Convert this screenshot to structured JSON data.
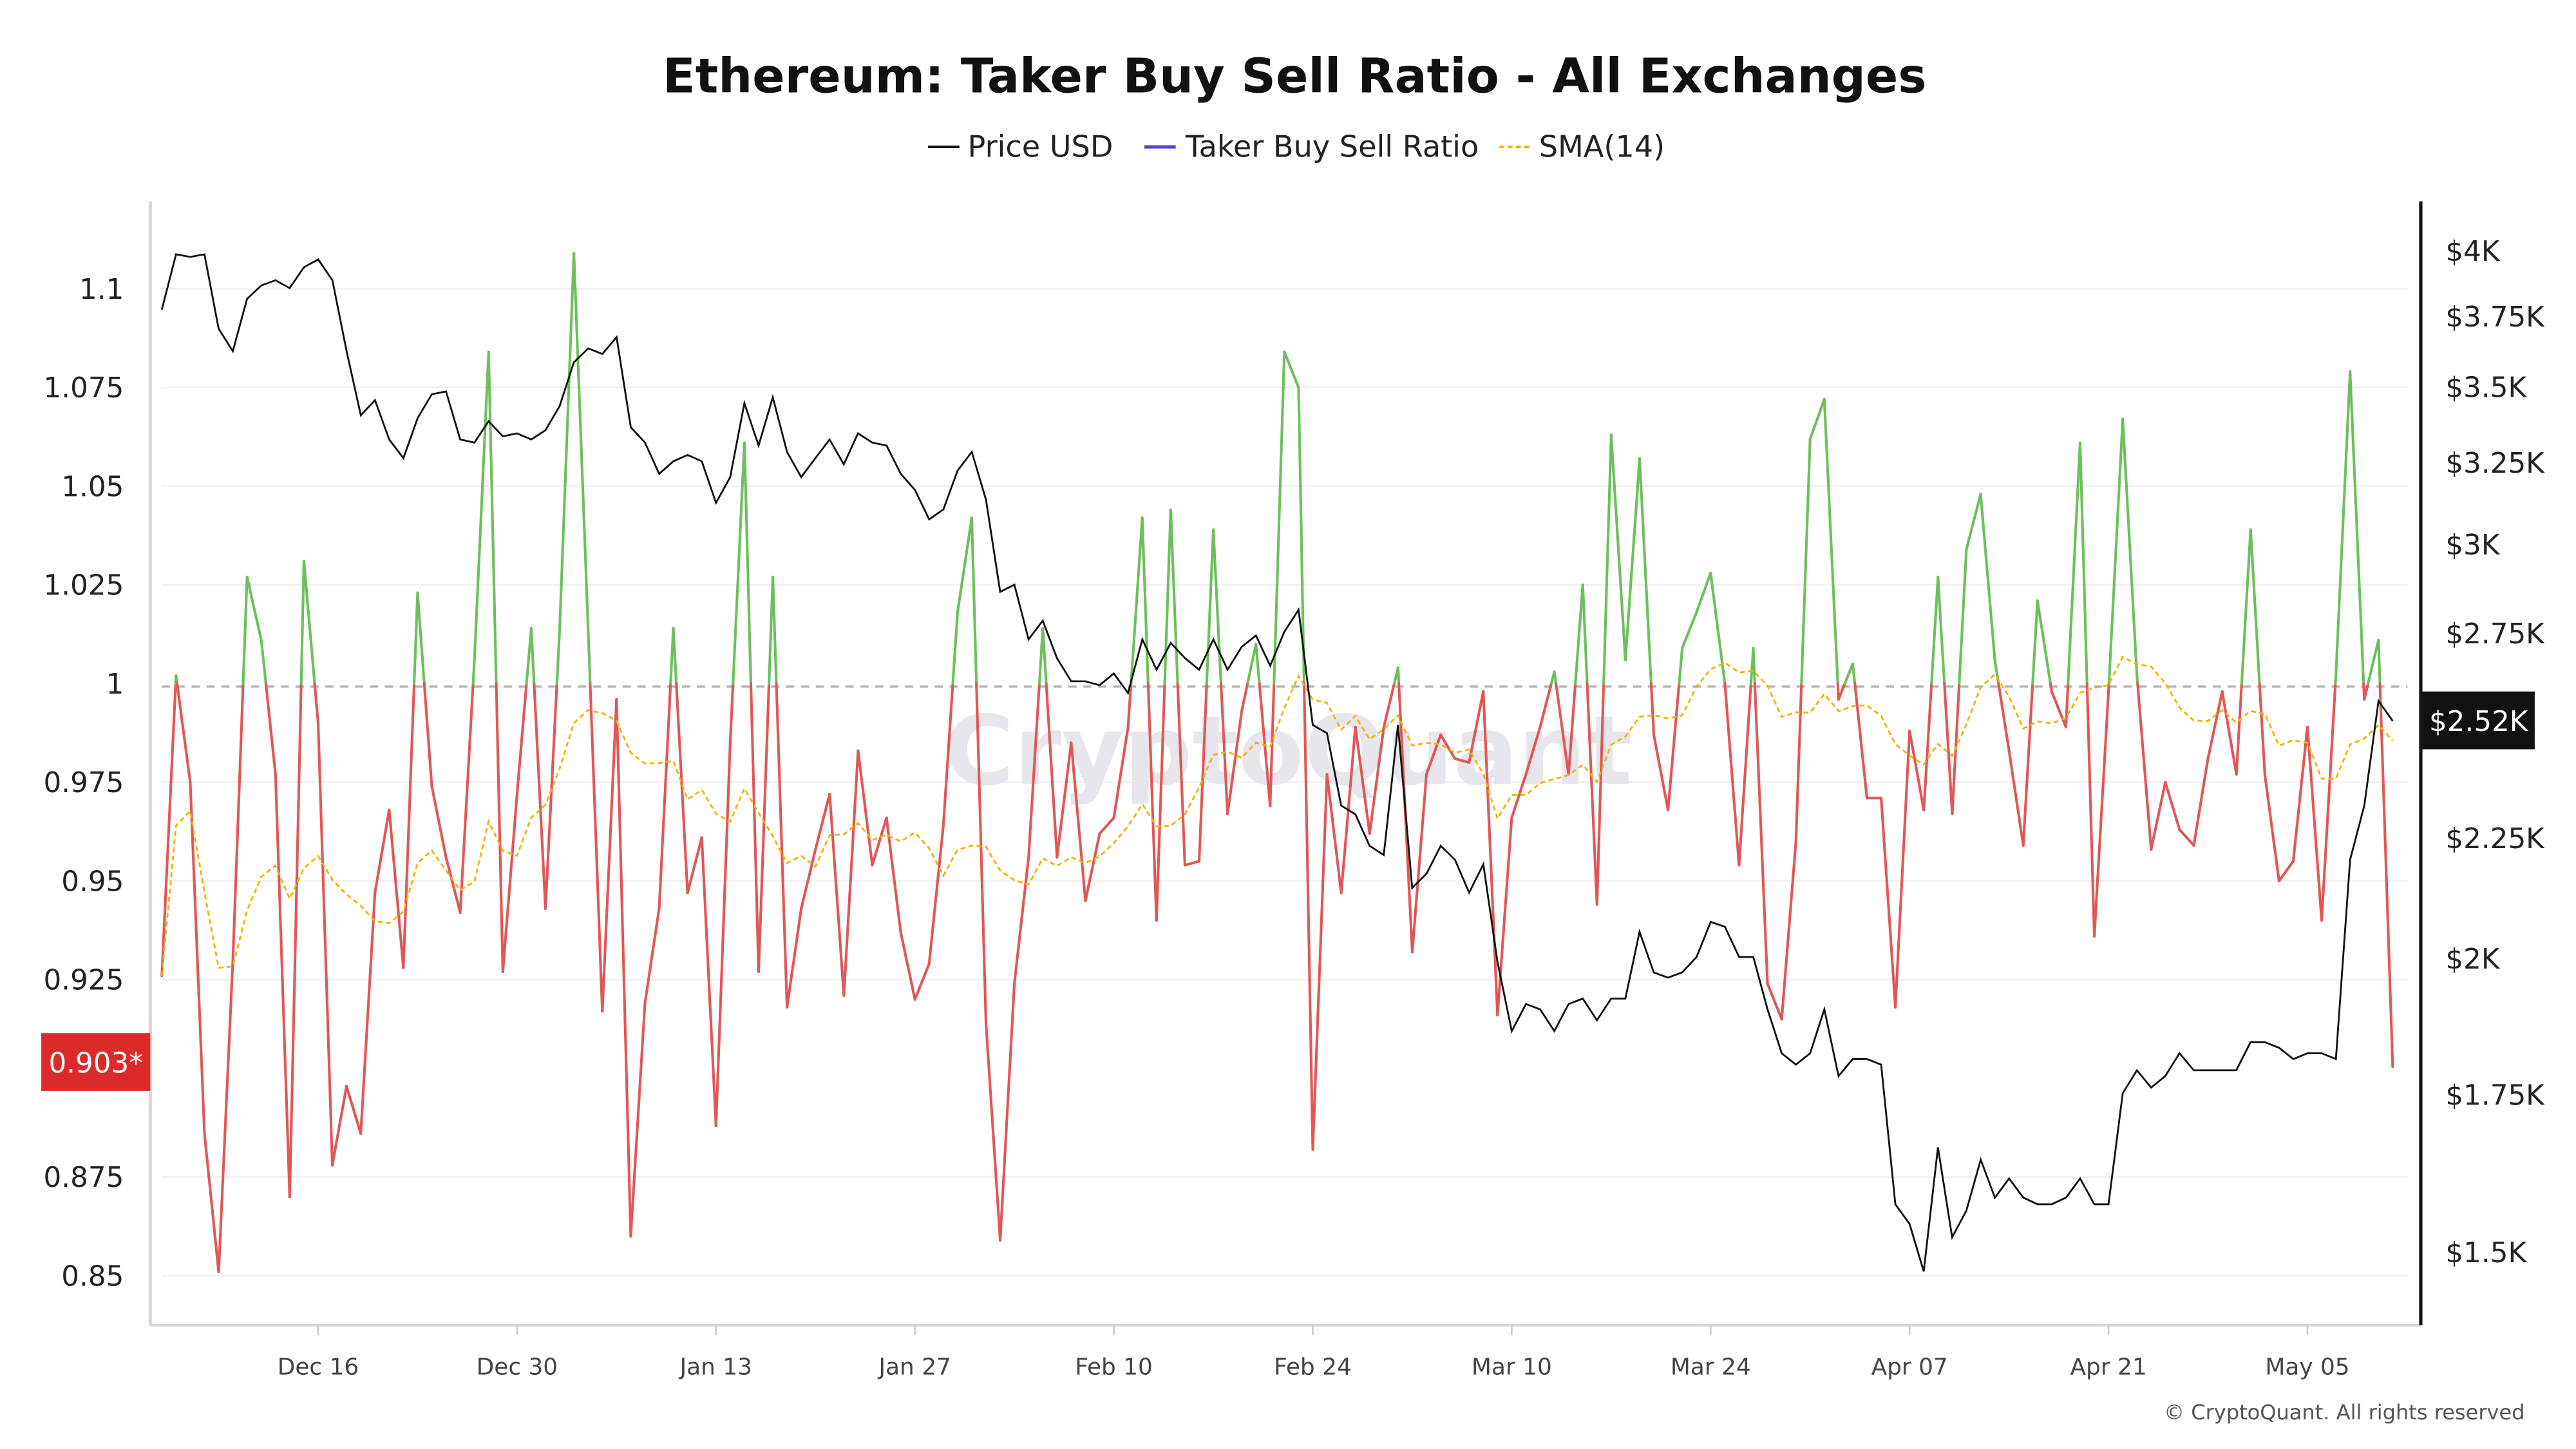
{
  "chart_data": {
    "type": "line",
    "title": "Ethereum: Taker Buy Sell Ratio - All Exchanges",
    "legend": [
      "Price USD",
      "Taker Buy Sell Ratio",
      "SMA(14)"
    ],
    "legend_placement": "top-center",
    "x": [
      "Dec 05",
      "Dec 06",
      "Dec 07",
      "Dec 08",
      "Dec 09",
      "Dec 10",
      "Dec 11",
      "Dec 12",
      "Dec 13",
      "Dec 14",
      "Dec 15",
      "Dec 16",
      "Dec 17",
      "Dec 18",
      "Dec 19",
      "Dec 20",
      "Dec 21",
      "Dec 22",
      "Dec 23",
      "Dec 24",
      "Dec 25",
      "Dec 26",
      "Dec 27",
      "Dec 28",
      "Dec 29",
      "Dec 30",
      "Dec 31",
      "Jan 01",
      "Jan 02",
      "Jan 03",
      "Jan 04",
      "Jan 05",
      "Jan 06",
      "Jan 07",
      "Jan 08",
      "Jan 09",
      "Jan 10",
      "Jan 11",
      "Jan 12",
      "Jan 13",
      "Jan 14",
      "Jan 15",
      "Jan 16",
      "Jan 17",
      "Jan 18",
      "Jan 19",
      "Jan 20",
      "Jan 21",
      "Jan 22",
      "Jan 23",
      "Jan 24",
      "Jan 25",
      "Jan 26",
      "Jan 27",
      "Jan 28",
      "Jan 29",
      "Jan 30",
      "Jan 31",
      "Feb 01",
      "Feb 02",
      "Feb 03",
      "Feb 04",
      "Feb 05",
      "Feb 06",
      "Feb 07",
      "Feb 08",
      "Feb 09",
      "Feb 10",
      "Feb 11",
      "Feb 12",
      "Feb 13",
      "Feb 14",
      "Feb 15",
      "Feb 16",
      "Feb 17",
      "Feb 18",
      "Feb 19",
      "Feb 20",
      "Feb 21",
      "Feb 22",
      "Feb 23",
      "Feb 24",
      "Feb 25",
      "Feb 26",
      "Feb 27",
      "Feb 28",
      "Mar 01",
      "Mar 02",
      "Mar 03",
      "Mar 04",
      "Mar 05",
      "Mar 06",
      "Mar 07",
      "Mar 08",
      "Mar 09",
      "Mar 10",
      "Mar 11",
      "Mar 12",
      "Mar 13",
      "Mar 14",
      "Mar 15",
      "Mar 16",
      "Mar 17",
      "Mar 18",
      "Mar 19",
      "Mar 20",
      "Mar 21",
      "Mar 22",
      "Mar 23",
      "Mar 24",
      "Mar 25",
      "Mar 26",
      "Mar 27",
      "Mar 28",
      "Mar 29",
      "Mar 30",
      "Mar 31",
      "Apr 01",
      "Apr 02",
      "Apr 03",
      "Apr 04",
      "Apr 05",
      "Apr 06",
      "Apr 07",
      "Apr 08",
      "Apr 09",
      "Apr 10",
      "Apr 11",
      "Apr 12",
      "Apr 13",
      "Apr 14",
      "Apr 15",
      "Apr 16",
      "Apr 17",
      "Apr 18",
      "Apr 19",
      "Apr 20",
      "Apr 21",
      "Apr 22",
      "Apr 23",
      "Apr 24",
      "Apr 25",
      "Apr 26",
      "Apr 27",
      "Apr 28",
      "Apr 29",
      "Apr 30",
      "May 01",
      "May 02",
      "May 03",
      "May 04",
      "May 05",
      "May 06",
      "May 07",
      "May 08",
      "May 09",
      "May 10",
      "May 11"
    ],
    "series": [
      {
        "name": "Taker Buy Sell Ratio",
        "axis": "left",
        "values": [
          0.926,
          1.002,
          0.975,
          0.886,
          0.851,
          0.93,
          1.027,
          1.011,
          0.977,
          0.87,
          1.031,
          0.99,
          0.878,
          0.898,
          0.886,
          0.947,
          0.968,
          0.928,
          1.023,
          0.974,
          0.956,
          0.942,
          1.006,
          1.084,
          0.927,
          0.972,
          1.014,
          0.943,
          1.014,
          1.109,
          1.014,
          0.917,
          0.996,
          0.86,
          0.919,
          0.943,
          1.014,
          0.947,
          0.961,
          0.888,
          0.985,
          1.061,
          0.927,
          1.027,
          0.918,
          0.943,
          0.958,
          0.972,
          0.921,
          0.983,
          0.954,
          0.966,
          0.937,
          0.92,
          0.929,
          0.964,
          1.018,
          1.042,
          0.914,
          0.859,
          0.924,
          0.956,
          1.014,
          0.956,
          0.985,
          0.945,
          0.962,
          0.966,
          0.989,
          1.042,
          0.94,
          1.044,
          0.954,
          0.955,
          1.039,
          0.967,
          0.993,
          1.01,
          0.969,
          1.084,
          1.075,
          0.882,
          0.977,
          0.947,
          0.989,
          0.962,
          0.989,
          1.004,
          0.932,
          0.977,
          0.987,
          0.981,
          0.98,
          0.998,
          0.916,
          0.966,
          0.977,
          0.989,
          1.003,
          0.977,
          1.025,
          0.944,
          1.063,
          1.006,
          1.057,
          0.987,
          0.968,
          1.009,
          1.018,
          1.028,
          1.0,
          0.954,
          1.009,
          0.924,
          0.915,
          0.96,
          1.062,
          1.072,
          0.996,
          1.005,
          0.971,
          0.971,
          0.918,
          0.988,
          0.968,
          1.027,
          0.967,
          1.034,
          1.048,
          1.006,
          0.983,
          0.959,
          1.021,
          0.998,
          0.989,
          1.061,
          0.936,
          0.998,
          1.067,
          1.002,
          0.958,
          0.975,
          0.963,
          0.959,
          0.981,
          0.998,
          0.977,
          1.039,
          0.977,
          0.95,
          0.955,
          0.989,
          0.94,
          1.002,
          1.079,
          0.996,
          1.011,
          0.903
        ]
      },
      {
        "name": "Price USD",
        "axis": "right",
        "values": [
          3770,
          3980,
          3970,
          3980,
          3700,
          3620,
          3810,
          3860,
          3880,
          3850,
          3930,
          3960,
          3880,
          3620,
          3400,
          3450,
          3320,
          3260,
          3390,
          3470,
          3480,
          3320,
          3310,
          3380,
          3330,
          3340,
          3320,
          3350,
          3430,
          3580,
          3630,
          3610,
          3670,
          3360,
          3310,
          3210,
          3250,
          3270,
          3250,
          3120,
          3200,
          3440,
          3300,
          3460,
          3280,
          3200,
          3260,
          3320,
          3240,
          3340,
          3310,
          3300,
          3210,
          3160,
          3070,
          3100,
          3220,
          3280,
          3130,
          2860,
          2880,
          2730,
          2780,
          2680,
          2620,
          2620,
          2610,
          2640,
          2590,
          2730,
          2650,
          2720,
          2680,
          2650,
          2730,
          2650,
          2710,
          2740,
          2660,
          2750,
          2810,
          2510,
          2490,
          2320,
          2300,
          2230,
          2210,
          2510,
          2140,
          2170,
          2230,
          2200,
          2130,
          2190,
          1990,
          1860,
          1910,
          1900,
          1860,
          1910,
          1920,
          1880,
          1920,
          1920,
          2050,
          1970,
          1960,
          1970,
          2000,
          2070,
          2060,
          2000,
          2000,
          1900,
          1820,
          1800,
          1820,
          1900,
          1780,
          1810,
          1810,
          1800,
          1570,
          1540,
          1470,
          1660,
          1520,
          1560,
          1640,
          1580,
          1610,
          1580,
          1570,
          1570,
          1580,
          1610,
          1570,
          1570,
          1750,
          1790,
          1760,
          1780,
          1820,
          1790,
          1790,
          1790,
          1790,
          1840,
          1840,
          1830,
          1810,
          1820,
          1820,
          1810,
          2200,
          2320,
          2570,
          2520
        ]
      },
      {
        "name": "SMA(14)",
        "axis": "left",
        "derived_from": "Taker Buy Sell Ratio",
        "window": 14
      }
    ],
    "left_axis": {
      "ticks": [
        "1.1",
        "1.075",
        "1.05",
        "1.025",
        "1",
        "0.975",
        "0.95",
        "0.925",
        "0.875",
        "0.85"
      ],
      "range": [
        0.838,
        1.12
      ]
    },
    "right_axis": {
      "scale": "log",
      "ticks": [
        "$4K",
        "$3.75K",
        "$3.5K",
        "$3.25K",
        "$3K",
        "$2.75K",
        "$2.5K",
        "$2.25K",
        "$2K",
        "$1.75K",
        "$1.5K"
      ],
      "tick_values": [
        4000,
        3750,
        3500,
        3250,
        3000,
        2750,
        2500,
        2250,
        2000,
        1750,
        1500
      ]
    },
    "x_ticks": [
      "Dec 16",
      "Dec 30",
      "Jan 13",
      "Jan 27",
      "Feb 10",
      "Feb 24",
      "Mar 10",
      "Mar 24",
      "Apr 07",
      "Apr 21",
      "May 05"
    ],
    "reference_line": 1,
    "current_ratio_label": "0.903*",
    "current_price_label": "$2.52K",
    "grid": true,
    "colors": {
      "price": "#111111",
      "ratio_legend": "#5b3fd6",
      "ratio_above": "#6cc05a",
      "ratio_below": "#e05757",
      "sma": "#f2b400",
      "ratio_badge": "#dc2a2a",
      "price_badge": "#111111"
    }
  },
  "watermark": "CryptoQuant",
  "copyright": "© CryptoQuant. All rights reserved"
}
